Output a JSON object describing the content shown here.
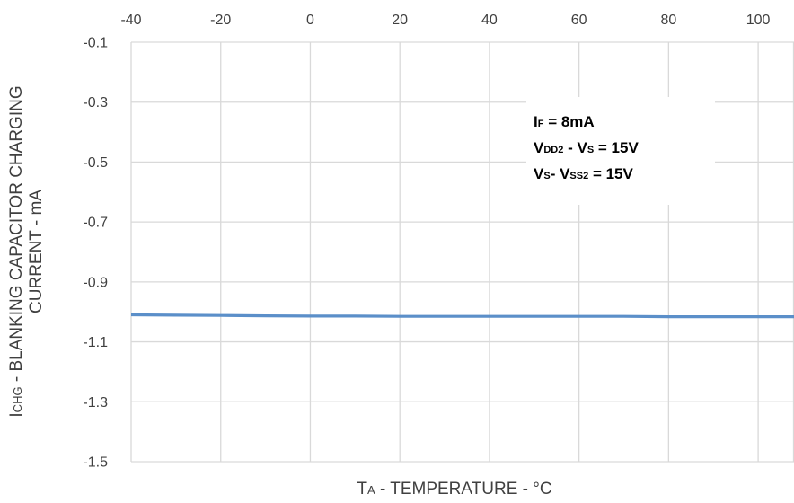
{
  "chart_data": {
    "type": "line",
    "x": [
      -40,
      -30,
      -20,
      -10,
      0,
      10,
      20,
      30,
      40,
      50,
      60,
      70,
      80,
      90,
      100,
      108
    ],
    "series": [
      {
        "values": [
          -1.01,
          -1.011,
          -1.012,
          -1.013,
          -1.014,
          -1.014,
          -1.015,
          -1.015,
          -1.015,
          -1.015,
          -1.015,
          -1.015,
          -1.016,
          -1.016,
          -1.016,
          -1.016
        ]
      }
    ],
    "x_ticks": [
      "-40",
      "-20",
      "0",
      "20",
      "40",
      "60",
      "80",
      "100"
    ],
    "y_ticks": [
      "-0.1",
      "-0.3",
      "-0.5",
      "-0.7",
      "-0.9",
      "-1.1",
      "-1.3",
      "-1.5"
    ],
    "xlim": [
      -40,
      108
    ],
    "ylim": [
      -1.5,
      -0.1
    ],
    "x_axis_position": "top",
    "grid": true,
    "xlabel": {
      "main": "T",
      "sub": "A",
      "rest": " - TEMPERATURE - °C"
    },
    "ylabel": {
      "line1_main": "I",
      "line1_sub": "CHG",
      "line1_rest": " - BLANKING CAPACITOR CHARGING",
      "line2": "CURRENT - mA"
    },
    "annotation": {
      "line1": {
        "a": "I",
        "a_sub": "F",
        "b": " = 8mA"
      },
      "line2": {
        "a": "V",
        "a_sub": "DD2",
        "b": " - V",
        "b_sub": "S",
        "c": " = 15V"
      },
      "line3": {
        "a": "V",
        "a_sub": "S",
        "b": "- V",
        "b_sub": "SS2",
        "c": " = 15V"
      }
    },
    "colors": {
      "line": "#5B8FC9",
      "grid": "#D9D9D9",
      "text": "#404040"
    }
  }
}
